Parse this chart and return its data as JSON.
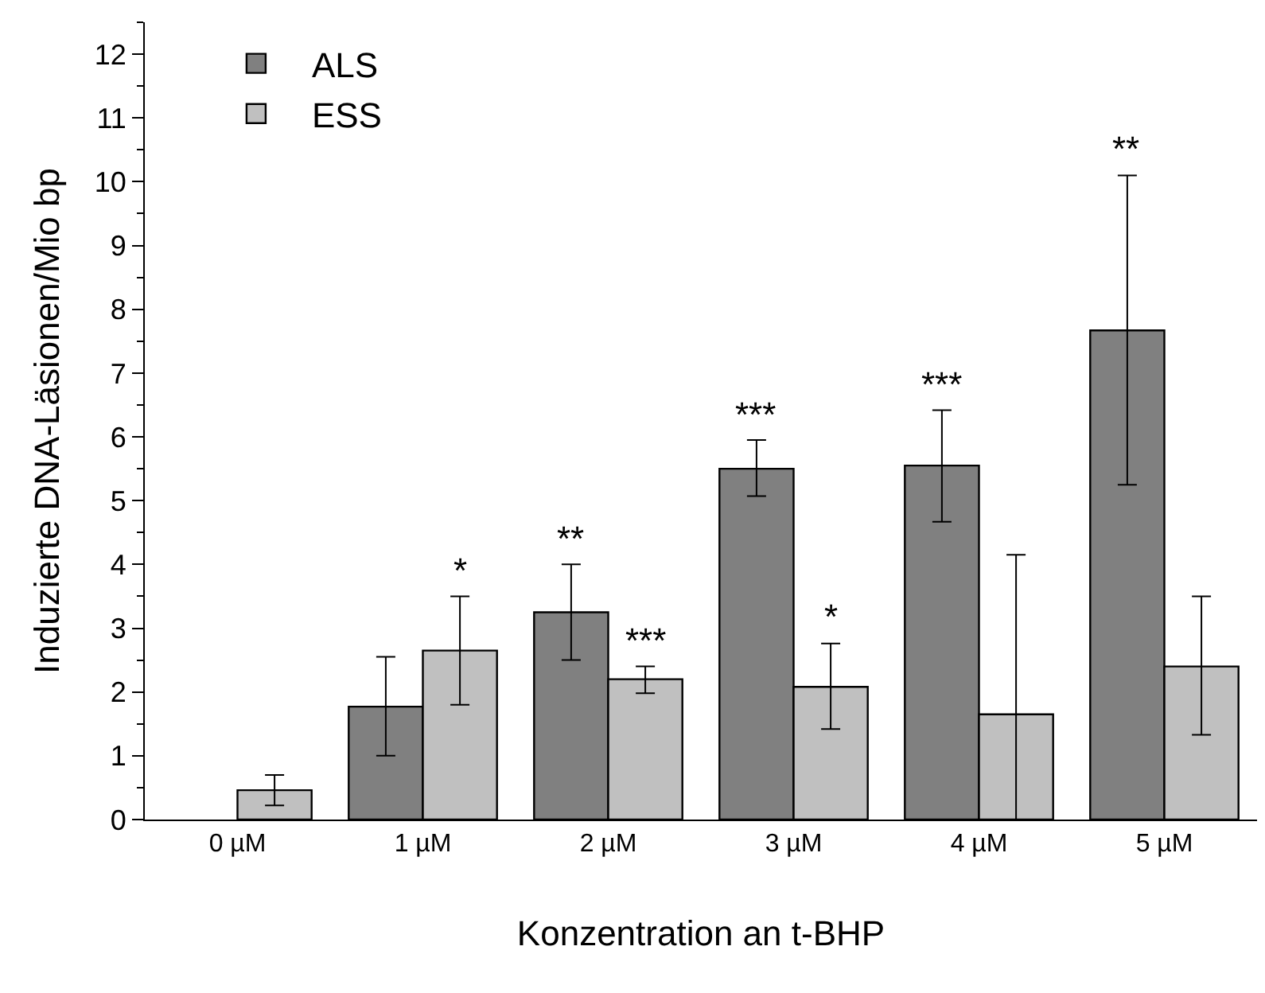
{
  "chart_data": {
    "type": "bar",
    "xlabel": "Konzentration an t-BHP",
    "ylabel": "Induzierte DNA-Läsionen/Mio bp",
    "categories": [
      "0 µM",
      "1 µM",
      "2 µM",
      "3 µM",
      "4 µM",
      "5 µM"
    ],
    "series": [
      {
        "name": "ALS",
        "color": "#808080",
        "values": [
          null,
          1.77,
          3.25,
          5.5,
          5.55,
          7.67
        ],
        "errors": [
          null,
          [
            1.0,
            2.55
          ],
          [
            2.5,
            4.0
          ],
          [
            5.07,
            5.95
          ],
          [
            4.67,
            6.42
          ],
          [
            5.25,
            10.1
          ]
        ]
      },
      {
        "name": "ESS",
        "color": "#c0c0c0",
        "values": [
          0.46,
          2.65,
          2.2,
          2.08,
          1.65,
          2.4
        ],
        "errors": [
          [
            0.22,
            0.7
          ],
          [
            1.8,
            3.5
          ],
          [
            1.98,
            2.4
          ],
          [
            1.42,
            2.76
          ],
          [
            0,
            4.15
          ],
          [
            1.33,
            3.5
          ]
        ]
      }
    ],
    "ylim": [
      0,
      12.5
    ],
    "yticks": [
      0,
      1,
      2,
      3,
      4,
      5,
      6,
      7,
      8,
      9,
      10,
      11,
      12
    ],
    "legend": "top left",
    "annotations": [
      {
        "text": "*",
        "x": "1 µM",
        "y": 2.65
      },
      {
        "text": "**",
        "x": "2 µM",
        "y": 3.25
      },
      {
        "text": "***",
        "x": "2 µM",
        "y": 2.2
      },
      {
        "text": "***",
        "x": "3 µM",
        "y": 5.5
      },
      {
        "text": "*",
        "x": "3 µM",
        "y": 2.08
      },
      {
        "text": "***",
        "x": "4 µM",
        "y": 5.55
      },
      "**"
    ]
  }
}
